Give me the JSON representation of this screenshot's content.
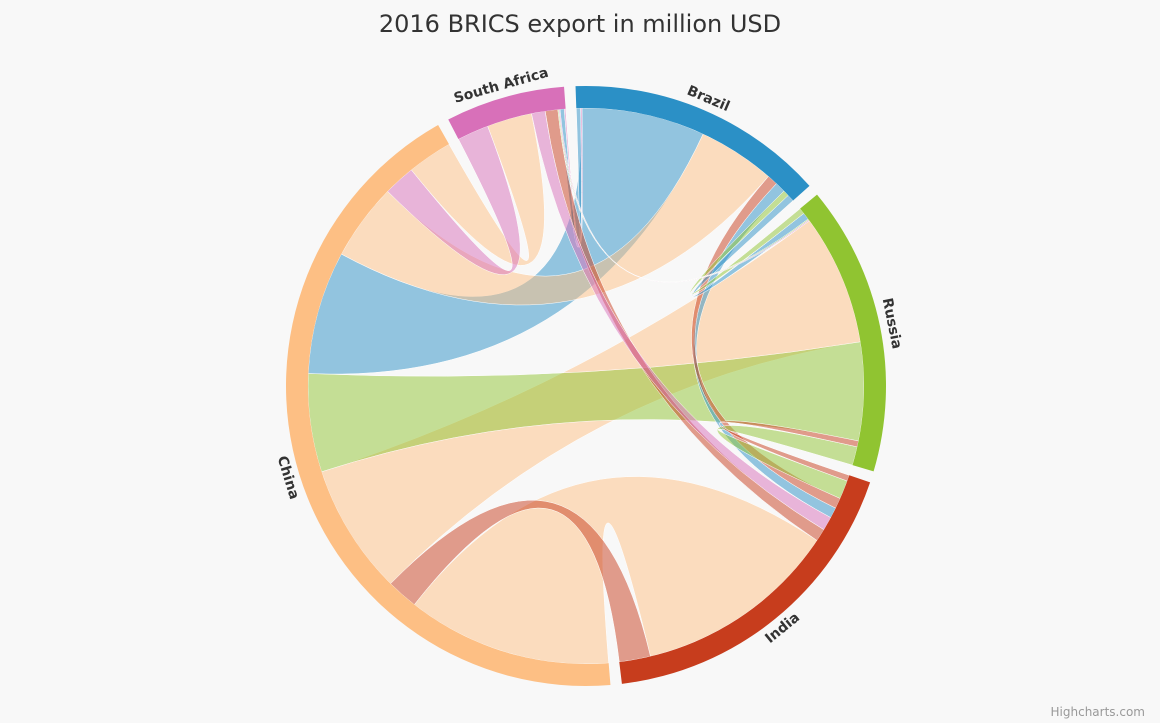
{
  "chart_data": {
    "type": "dependencywheel",
    "title": "2016 BRICS export in million USD",
    "credits": "Highcharts.com",
    "nodes": [
      {
        "id": "Brazil",
        "color": "#2b90c6"
      },
      {
        "id": "Russia",
        "color": "#90c431"
      },
      {
        "id": "India",
        "color": "#c73d1d"
      },
      {
        "id": "China",
        "color": "#fdbf84"
      },
      {
        "id": "South Africa",
        "color": "#d870b9"
      }
    ],
    "links": [
      {
        "from": "Brazil",
        "to": "China",
        "value": 35134
      },
      {
        "from": "China",
        "to": "Brazil",
        "value": 21976
      },
      {
        "from": "China",
        "to": "Russia",
        "value": 37297
      },
      {
        "from": "Russia",
        "to": "China",
        "value": 28018
      },
      {
        "from": "China",
        "to": "India",
        "value": 58398
      },
      {
        "from": "India",
        "to": "China",
        "value": 8916
      },
      {
        "from": "China",
        "to": "South Africa",
        "value": 12850
      },
      {
        "from": "South Africa",
        "to": "China",
        "value": 9000
      },
      {
        "from": "Brazil",
        "to": "India",
        "value": 3000
      },
      {
        "from": "India",
        "to": "Brazil",
        "value": 3000
      },
      {
        "from": "Brazil",
        "to": "Russia",
        "value": 2000
      },
      {
        "from": "Russia",
        "to": "Brazil",
        "value": 1700
      },
      {
        "from": "Brazil",
        "to": "South Africa",
        "value": 1200
      },
      {
        "from": "South Africa",
        "to": "Brazil",
        "value": 400
      },
      {
        "from": "Russia",
        "to": "India",
        "value": 5300
      },
      {
        "from": "India",
        "to": "Russia",
        "value": 1700
      },
      {
        "from": "India",
        "to": "South Africa",
        "value": 3600
      },
      {
        "from": "South Africa",
        "to": "India",
        "value": 3900
      },
      {
        "from": "Russia",
        "to": "South Africa",
        "value": 300
      },
      {
        "from": "South Africa",
        "to": "Russia",
        "value": 300
      }
    ]
  }
}
